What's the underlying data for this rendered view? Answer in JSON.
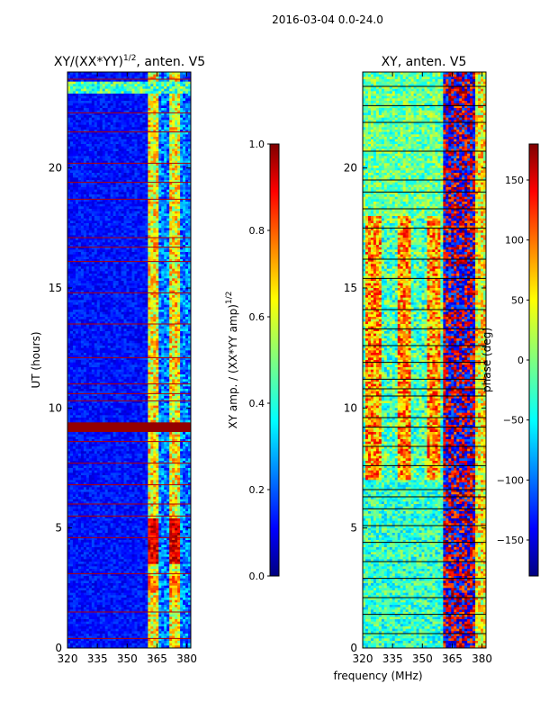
{
  "figure_title": "2016-03-04 0.0-24.0",
  "shared_xlabel": "frequency (MHz)",
  "chart_data": [
    {
      "type": "heatmap",
      "title_main": "XY/(XX*YY)",
      "title_sup": "1/2",
      "title_tail": ", anten. V5",
      "xlabel": "",
      "ylabel": "UT (hours)",
      "xlim": [
        320,
        382
      ],
      "ylim": [
        0,
        24
      ],
      "xticks": [
        320,
        335,
        350,
        365,
        380
      ],
      "yticks": [
        0,
        5,
        10,
        15,
        20
      ],
      "colorbar": {
        "label_main": "XY amp. / (XX*YY amp)",
        "label_sup": "1/2",
        "range": [
          0.0,
          1.0
        ],
        "ticks": [
          "0.0",
          "0.2",
          "0.4",
          "0.6",
          "0.8",
          "1.0"
        ],
        "colormap": "jet"
      }
    },
    {
      "type": "heatmap",
      "title": "XY, anten. V5",
      "xlabel": "",
      "ylabel": "",
      "xlim": [
        320,
        382
      ],
      "ylim": [
        0,
        24
      ],
      "xticks": [
        320,
        335,
        350,
        365,
        380
      ],
      "yticks": [
        0,
        5,
        10,
        15,
        20
      ],
      "colorbar": {
        "label": "phase (deg)",
        "range": [
          -180,
          180
        ],
        "ticks": [
          "−150",
          "−100",
          "−50",
          "0",
          "50",
          "100",
          "150"
        ],
        "colormap": "jet"
      }
    }
  ],
  "colors": {
    "jet_low": "#00007f",
    "jet_blue": "#0000ff",
    "jet_cyan": "#00ffff",
    "jet_yellow": "#ffff00",
    "jet_red": "#ff0000",
    "jet_high": "#7f0000"
  }
}
